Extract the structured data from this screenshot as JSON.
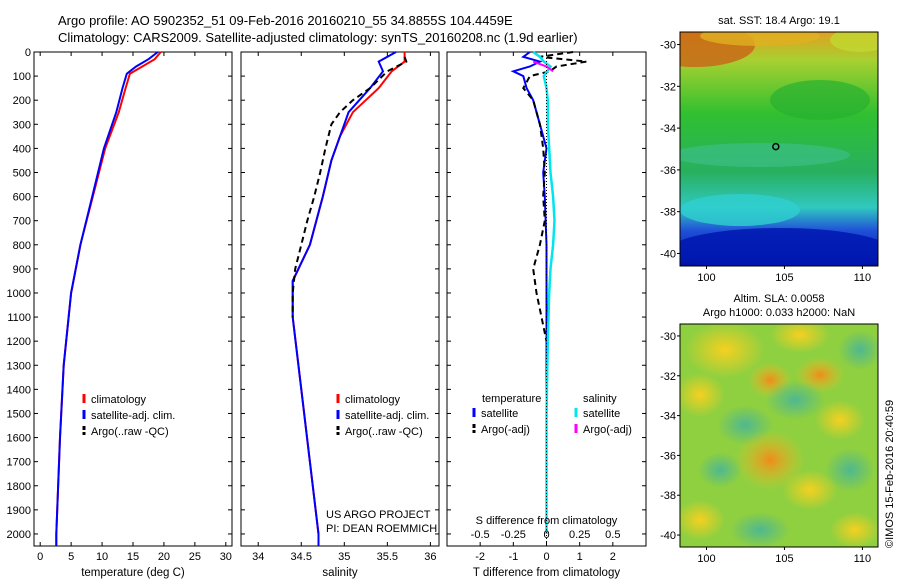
{
  "header": {
    "line1": "Argo profile: AO 5902352_51 09-Feb-2016 20160210_55 34.8855S 104.4459E",
    "line2": "Climatology: CARS2009. Satellite-adjusted climatology: synTS_20160208.nc (1.9d earlier)"
  },
  "colors": {
    "climatology": "#ff0000",
    "satellite": "#0000ff",
    "argo": "#000000",
    "salinity_sat": "#00e5ee",
    "salinity_argo": "#ff00ff"
  },
  "depth_ticks": [
    "0",
    "100",
    "200",
    "300",
    "400",
    "500",
    "600",
    "700",
    "800",
    "900",
    "1000",
    "1100",
    "1200",
    "1300",
    "1400",
    "1500",
    "1600",
    "1700",
    "1800",
    "1900",
    "2000"
  ],
  "temperature": {
    "xlabel": "temperature (deg C)",
    "xticks": [
      "0",
      "5",
      "10",
      "15",
      "20",
      "25",
      "30"
    ],
    "legend": [
      "climatology",
      "satellite-adj. clim.",
      "Argo(..raw -QC)"
    ],
    "chart_data": {
      "type": "line",
      "xlim": [
        -1,
        31
      ],
      "ylim": [
        2050,
        0
      ],
      "series": [
        {
          "name": "climatology",
          "depth": [
            0,
            30,
            60,
            90,
            150,
            250,
            400,
            600,
            800,
            1000,
            1300,
            1600,
            2000,
            2050
          ],
          "values": [
            19.5,
            18.5,
            16.5,
            14.5,
            13.8,
            12.7,
            10.5,
            8.5,
            6.5,
            5.0,
            3.8,
            3.2,
            2.6,
            2.6
          ]
        },
        {
          "name": "satellite-adj. clim.",
          "depth": [
            0,
            30,
            60,
            90,
            150,
            250,
            400,
            600,
            800,
            1000,
            1300,
            1600,
            2000,
            2050
          ],
          "values": [
            19.0,
            17.5,
            15.5,
            14.0,
            13.3,
            12.3,
            10.3,
            8.4,
            6.5,
            5.0,
            3.8,
            3.2,
            2.6,
            2.6
          ]
        }
      ]
    }
  },
  "salinity": {
    "xlabel": "salinity",
    "xticks": [
      "34",
      "34.5",
      "35",
      "35.5",
      "36"
    ],
    "legend": [
      "climatology",
      "satellite-adj. clim.",
      "Argo(..raw -QC)"
    ],
    "project_line1": "US ARGO PROJECT",
    "project_line2": "PI: DEAN ROEMMICH",
    "chart_data": {
      "type": "line",
      "xlim": [
        33.8,
        36.1
      ],
      "ylim": [
        2050,
        0
      ],
      "series": [
        {
          "name": "climatology",
          "depth": [
            0,
            40,
            80,
            150,
            250,
            350,
            450,
            600,
            800,
            950,
            1100,
            1400,
            1700,
            2000,
            2050
          ],
          "values": [
            35.7,
            35.7,
            35.55,
            35.4,
            35.1,
            34.95,
            34.85,
            34.75,
            34.6,
            34.4,
            34.4,
            34.5,
            34.6,
            34.7,
            34.7
          ]
        },
        {
          "name": "satellite-adj. clim.",
          "depth": [
            0,
            40,
            80,
            150,
            250,
            350,
            450,
            600,
            800,
            950,
            1100,
            1400,
            1700,
            2000,
            2050
          ],
          "values": [
            35.6,
            35.4,
            35.45,
            35.3,
            35.05,
            34.95,
            34.85,
            34.75,
            34.6,
            34.4,
            34.4,
            34.5,
            34.6,
            34.7,
            34.7
          ]
        },
        {
          "name": "Argo(..raw -QC)",
          "depth": [
            20,
            40,
            80,
            150,
            200,
            250,
            300,
            400,
            500,
            600,
            700,
            800,
            900,
            1000,
            1100
          ],
          "values": [
            35.7,
            35.72,
            35.5,
            35.3,
            35.1,
            34.95,
            34.85,
            34.78,
            34.72,
            34.65,
            34.57,
            34.5,
            34.43,
            34.4,
            34.4
          ]
        }
      ]
    }
  },
  "difference": {
    "xlabel": "T difference from climatology",
    "top_label": "S difference from climatology",
    "xticks": [
      "-2",
      "-1",
      "0",
      "1",
      "2"
    ],
    "sticks": [
      "-0.5",
      "-0.25",
      "0",
      "0.25",
      "0.5"
    ],
    "legend_temperature": {
      "title": "temperature",
      "items": [
        "satellite",
        "Argo(-adj)"
      ]
    },
    "legend_salinity": {
      "title": "salinity",
      "items": [
        "satellite",
        "Argo(-adj)"
      ]
    },
    "chart_data": {
      "type": "line",
      "xlim": [
        -3,
        3
      ],
      "ylim": [
        2050,
        0
      ],
      "series": [
        {
          "name": "temperature satellite",
          "depth": [
            0,
            20,
            40,
            60,
            80,
            100,
            150,
            200,
            300,
            400,
            500,
            600,
            800,
            1000,
            1200,
            1500,
            2000
          ],
          "values": [
            -0.5,
            -0.7,
            -0.2,
            -0.5,
            -1.0,
            -0.7,
            -0.6,
            -0.4,
            -0.2,
            0,
            -0.1,
            -0.05,
            0,
            0,
            0,
            0,
            0
          ]
        },
        {
          "name": "temperature Argo(-adj)",
          "depth": [
            0,
            20,
            40,
            60,
            80,
            100,
            150,
            200,
            300,
            400,
            500,
            600,
            700,
            800,
            900,
            1000,
            1100,
            1200
          ],
          "values": [
            0.8,
            -0.2,
            1.2,
            0.3,
            0.1,
            -0.5,
            -0.7,
            -0.4,
            -0.2,
            -0.1,
            -0.05,
            -0.1,
            -0.05,
            -0.2,
            -0.4,
            -0.3,
            -0.15,
            0
          ]
        },
        {
          "name": "salinity satellite",
          "depth": [
            0,
            20,
            40,
            60,
            100,
            150,
            200,
            300,
            400,
            500,
            600,
            700,
            800,
            900,
            1000,
            1200,
            1500,
            2000
          ],
          "values": [
            -0.1,
            -0.05,
            -0.02,
            0.03,
            -0.02,
            0,
            0.01,
            0.01,
            0.02,
            0.03,
            0.05,
            0.06,
            0.05,
            0.03,
            0.02,
            0.01,
            0,
            0
          ]
        },
        {
          "name": "salinity Argo(-adj)",
          "depth": [
            40,
            60,
            80
          ],
          "values": [
            -0.1,
            0,
            0.05
          ]
        }
      ]
    }
  },
  "sst_map": {
    "title": "sat. SST: 18.4 Argo: 19.1",
    "yticks": [
      "-30",
      "-32",
      "-34",
      "-36",
      "-38",
      "-40"
    ],
    "xticks": [
      "100",
      "105",
      "110"
    ],
    "chart_data": {
      "type": "heatmap",
      "lon": [
        98.3,
        111
      ],
      "lat": [
        -40.6,
        -29.4
      ],
      "argo_position": [
        104.4459,
        -34.8855
      ]
    }
  },
  "sla_map": {
    "title1": "Altim. SLA: 0.0058",
    "title2": "Argo h1000: 0.033 h2000: NaN",
    "yticks": [
      "-30",
      "-32",
      "-34",
      "-36",
      "-38",
      "-40"
    ],
    "xticks": [
      "100",
      "105",
      "110"
    ],
    "footer": "©IMOS 15-Feb-2016 20:40:59",
    "chart_data": {
      "type": "heatmap",
      "lon": [
        98.3,
        111
      ],
      "lat": [
        -40.6,
        -29.4
      ]
    }
  }
}
